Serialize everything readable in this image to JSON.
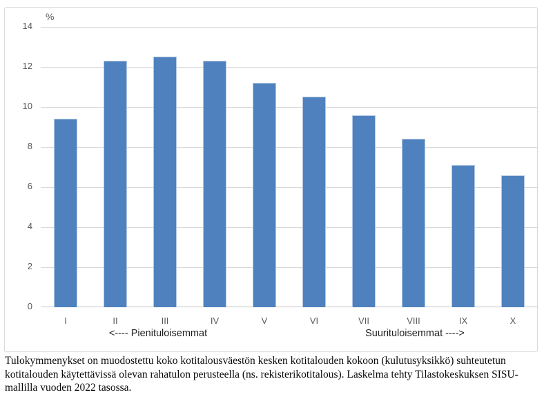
{
  "chart_data": {
    "type": "bar",
    "title": "",
    "unit_label": "%",
    "categories": [
      "I",
      "II",
      "III",
      "IV",
      "V",
      "VI",
      "VII",
      "VIII",
      "IX",
      "X"
    ],
    "values": [
      9.4,
      12.3,
      12.5,
      12.3,
      11.2,
      10.5,
      9.6,
      8.4,
      7.1,
      6.6
    ],
    "ylim": [
      0,
      14
    ],
    "yticks": [
      0,
      2,
      4,
      6,
      8,
      10,
      12,
      14
    ],
    "grid": true,
    "legend_position": "none",
    "bar_color": "#4e81bd",
    "bar_border_color": "#b3c8e2",
    "gridline_color": "#d9d9d9",
    "axis_line_color": "#c3c3c3",
    "tick_label_color": "#595959",
    "annotation_left": "<---- Pienituloisemmat",
    "annotation_right": "Suurituloisemmat ---->"
  },
  "caption": {
    "lines": [
      "Tulokymmenykset on muodostettu koko kotitalousväestön kesken kotitalouden kokoon (kulutusyksikkö) suhteutetun",
      "kotitalouden käytettävissä olevan rahatulon perusteella (ns. rekisterikotitalous). Laskelma tehty Tilastokeskuksen SISU-",
      "mallilla vuoden 2022 tasossa."
    ]
  }
}
